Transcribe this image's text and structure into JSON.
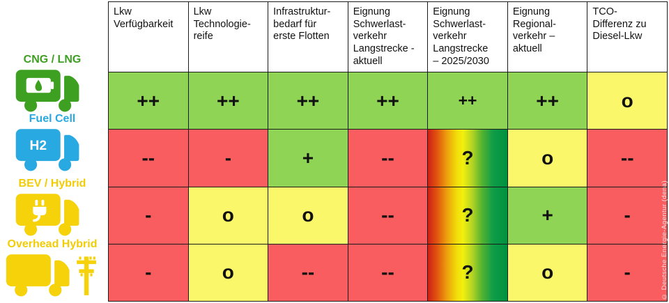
{
  "sidebar": {
    "vehicles": [
      {
        "label": "CNG / LNG",
        "color": "#3da021",
        "icon": "cng-lng-truck-icon"
      },
      {
        "label": "Fuel Cell",
        "color": "#29a9e1",
        "icon": "fuel-cell-h2-truck-icon"
      },
      {
        "label": "BEV / Hybrid",
        "color": "#f5d20a",
        "icon": "bev-hybrid-plug-truck-icon"
      },
      {
        "label": "Overhead Hybrid",
        "color": "#f5d20a",
        "icon": "overhead-hybrid-catenary-truck-icon"
      }
    ]
  },
  "chart_data": {
    "type": "table",
    "title": "",
    "legend_position": "none",
    "grid": true,
    "rating_scale": [
      "++",
      "+",
      "o",
      "-",
      "--",
      "?"
    ],
    "cell_colors": {
      "green": "#8fd455",
      "yellow": "#fbf76a",
      "red": "#f95d5f",
      "scale": "red-to-green gradient (unknown)"
    },
    "columns": [
      "Lkw\nVerfügbarkeit",
      "Lkw\nTechnologie-\nreife",
      "Infrastruktur-\nbedarf für\nerste Flotten",
      "Eignung\nSchwerlast-\nverkehr\nLangstrecke -\naktuell",
      "Eignung\nSchwerlast-\nverkehr\nLangstrecke\n– 2025/2030",
      "Eignung\nRegional-\nverkehr –\naktuell",
      "TCO-\nDifferenz zu\nDiesel-Lkw"
    ],
    "rows": [
      {
        "key": "cng-lng",
        "name": "CNG / LNG",
        "cells": [
          {
            "value": "++",
            "rating": "green"
          },
          {
            "value": "++",
            "rating": "green"
          },
          {
            "value": "++",
            "rating": "green"
          },
          {
            "value": "++",
            "rating": "green"
          },
          {
            "value": "++",
            "rating": "green",
            "size": "sm"
          },
          {
            "value": "++",
            "rating": "green"
          },
          {
            "value": "o",
            "rating": "yellow"
          }
        ]
      },
      {
        "key": "fuel-cell",
        "name": "Fuel Cell",
        "cells": [
          {
            "value": "--",
            "rating": "red"
          },
          {
            "value": "-",
            "rating": "red"
          },
          {
            "value": "+",
            "rating": "green"
          },
          {
            "value": "--",
            "rating": "red"
          },
          {
            "value": "?",
            "rating": "scale"
          },
          {
            "value": "o",
            "rating": "yellow"
          },
          {
            "value": "--",
            "rating": "red"
          }
        ]
      },
      {
        "key": "bev-hybrid",
        "name": "BEV / Hybrid",
        "cells": [
          {
            "value": "-",
            "rating": "red"
          },
          {
            "value": "o",
            "rating": "yellow"
          },
          {
            "value": "o",
            "rating": "yellow"
          },
          {
            "value": "--",
            "rating": "red"
          },
          {
            "value": "?",
            "rating": "scale"
          },
          {
            "value": "+",
            "rating": "green"
          },
          {
            "value": "-",
            "rating": "red"
          }
        ]
      },
      {
        "key": "overhead-hybrid",
        "name": "Overhead Hybrid",
        "cells": [
          {
            "value": "-",
            "rating": "red"
          },
          {
            "value": "o",
            "rating": "yellow"
          },
          {
            "value": "--",
            "rating": "red"
          },
          {
            "value": "--",
            "rating": "red"
          },
          {
            "value": "?",
            "rating": "scale"
          },
          {
            "value": "o",
            "rating": "yellow"
          },
          {
            "value": "-",
            "rating": "red"
          }
        ]
      }
    ]
  },
  "watermark": "© Deutsche Energie-Agentur  (dena)"
}
